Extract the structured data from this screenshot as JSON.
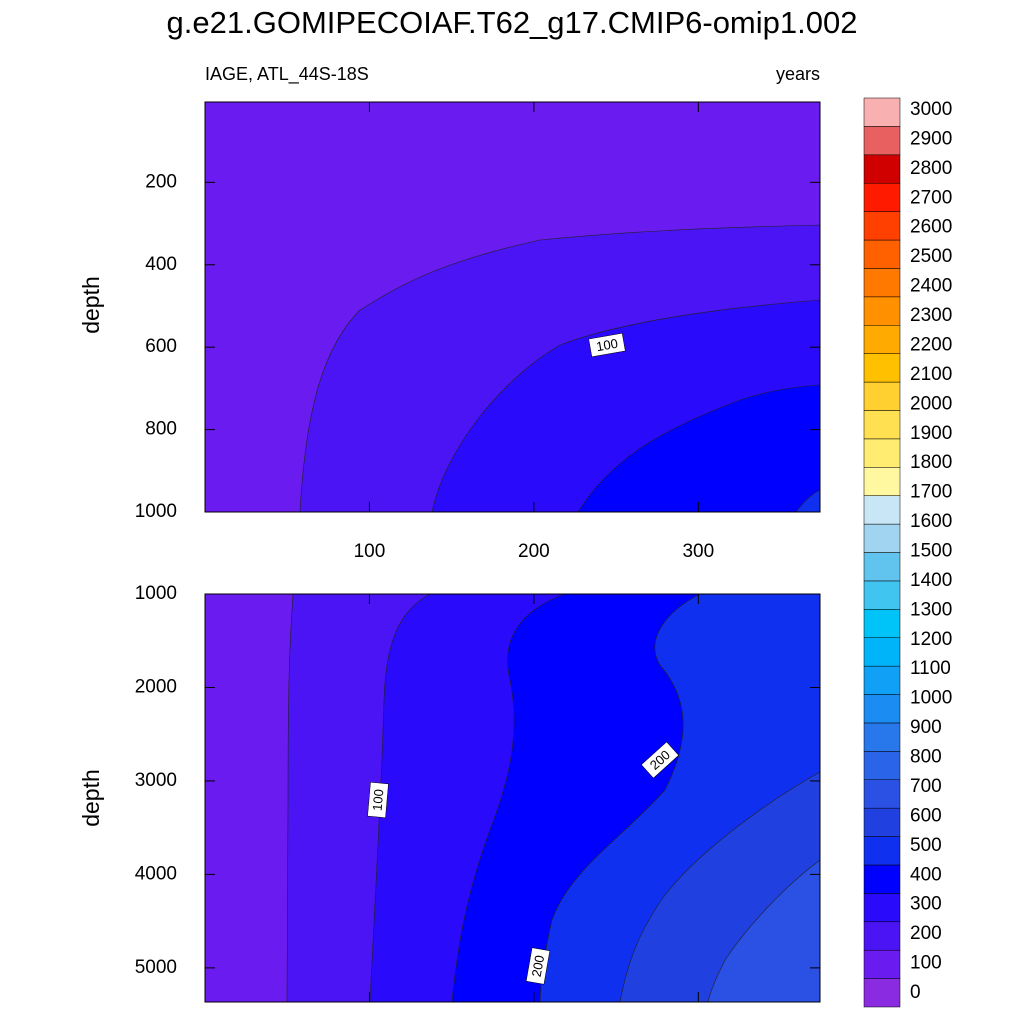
{
  "chart_data": [
    {
      "type": "contour",
      "title": "g.e21.GOMIPECOIAF.T62_g17.CMIP6-omip1.002",
      "subtitle_left": "IAGE, ATL_44S-18S",
      "subtitle_right": "years",
      "ylabel": "depth",
      "xlim": [
        0,
        374
      ],
      "xticks": [
        100,
        200,
        300
      ],
      "ylim": [
        5,
        1000
      ],
      "yticks": [
        200,
        400,
        600,
        800,
        1000
      ],
      "contour_labels": [
        100
      ],
      "colorbar": {
        "levels": [
          0,
          100,
          200,
          300,
          400,
          500,
          600,
          700,
          800,
          900,
          1000,
          1100,
          1200,
          1300,
          1400,
          1500,
          1600,
          1700,
          1800,
          1900,
          2000,
          2100,
          2200,
          2300,
          2400,
          2500,
          2600,
          2700,
          2800,
          2900,
          3000
        ],
        "colors": [
          "#8a2be2",
          "#6a1cf0",
          "#4a14f5",
          "#2a0afa",
          "#0000ff",
          "#1030f0",
          "#2040e0",
          "#2a50e4",
          "#2a64e8",
          "#2878ec",
          "#1a8cf2",
          "#10a0f6",
          "#00b4fa",
          "#00c4f8",
          "#40c4f0",
          "#60c4ee",
          "#a0d4f0",
          "#c8e6f6",
          "#fff8a0",
          "#ffec70",
          "#ffe050",
          "#ffd030",
          "#ffc000",
          "#ffaa00",
          "#ff9000",
          "#ff7800",
          "#ff6000",
          "#ff4000",
          "#ff1a00",
          "#d00000",
          "#e86060",
          "#f8b0b0"
        ]
      }
    },
    {
      "type": "contour",
      "ylabel": "depth",
      "xlim": [
        0,
        374
      ],
      "xticks": [
        100,
        200,
        300
      ],
      "ylim": [
        1000,
        5365
      ],
      "yticks": [
        1000,
        2000,
        3000,
        4000,
        5000
      ],
      "contour_labels": [
        100,
        200,
        200
      ]
    }
  ]
}
